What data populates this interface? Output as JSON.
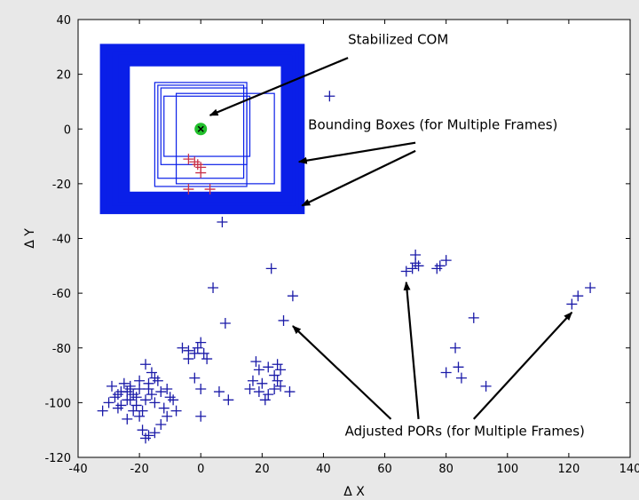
{
  "chart_data": {
    "type": "scatter",
    "title": "",
    "xlabel": "Δ X",
    "ylabel": "Δ Y",
    "xlim": [
      -40,
      140
    ],
    "ylim": [
      -120,
      40
    ],
    "xticks": [
      -40,
      -20,
      0,
      20,
      40,
      60,
      80,
      100,
      120,
      140
    ],
    "yticks": [
      40,
      20,
      0,
      -20,
      -40,
      -60,
      -80,
      -100,
      -120
    ],
    "grid": false,
    "colors": {
      "pors": "#1a1aa8",
      "com": "#22c02c",
      "boxes": "#0a1fe8",
      "frame_pors": "#c8324a",
      "arrows": "#000000"
    },
    "stabilized_com": {
      "x": 0,
      "y": 0
    },
    "bounding_boxes": [
      {
        "x0": -31,
        "x1": 32,
        "y0": -29,
        "y1": 29
      },
      {
        "x0": -29,
        "x1": 30,
        "y0": -28,
        "y1": 27
      },
      {
        "x0": -27,
        "x1": 29,
        "y0": -26,
        "y1": 26
      },
      {
        "x0": -25,
        "x1": 28,
        "y0": -25,
        "y1": 25
      },
      {
        "x0": -15,
        "x1": 15,
        "y0": -21,
        "y1": 17
      },
      {
        "x0": -14,
        "x1": 14,
        "y0": -18,
        "y1": 16
      },
      {
        "x0": -13,
        "x1": 15,
        "y0": -13,
        "y1": 15
      },
      {
        "x0": -8,
        "x1": 24,
        "y0": -20,
        "y1": 13
      },
      {
        "x0": -12,
        "x1": 16,
        "y0": -10,
        "y1": 12
      }
    ],
    "frame_pors": [
      {
        "x": -4,
        "y": -11
      },
      {
        "x": -2,
        "y": -12
      },
      {
        "x": -1,
        "y": -13
      },
      {
        "x": 0,
        "y": -14
      },
      {
        "x": 0,
        "y": -16
      },
      {
        "x": -4,
        "y": -22
      },
      {
        "x": 3,
        "y": -22
      }
    ],
    "points": [
      {
        "x": 42,
        "y": 12
      },
      {
        "x": 7,
        "y": -34
      },
      {
        "x": 23,
        "y": -51
      },
      {
        "x": 4,
        "y": -58
      },
      {
        "x": 30,
        "y": -61
      },
      {
        "x": 8,
        "y": -71
      },
      {
        "x": 27,
        "y": -70
      },
      {
        "x": 70,
        "y": -46
      },
      {
        "x": 70,
        "y": -49
      },
      {
        "x": 71,
        "y": -50
      },
      {
        "x": 69,
        "y": -51
      },
      {
        "x": 67,
        "y": -52
      },
      {
        "x": 77,
        "y": -51
      },
      {
        "x": 78,
        "y": -50
      },
      {
        "x": 80,
        "y": -48
      },
      {
        "x": 127,
        "y": -58
      },
      {
        "x": 123,
        "y": -61
      },
      {
        "x": 121,
        "y": -64
      },
      {
        "x": 89,
        "y": -69
      },
      {
        "x": 83,
        "y": -80
      },
      {
        "x": 84,
        "y": -87
      },
      {
        "x": 80,
        "y": -89
      },
      {
        "x": 85,
        "y": -91
      },
      {
        "x": 93,
        "y": -94
      },
      {
        "x": -6,
        "y": -80
      },
      {
        "x": -4,
        "y": -81
      },
      {
        "x": -2,
        "y": -82
      },
      {
        "x": -1,
        "y": -80
      },
      {
        "x": 0,
        "y": -78
      },
      {
        "x": 1,
        "y": -82
      },
      {
        "x": -4,
        "y": -84
      },
      {
        "x": 2,
        "y": -84
      },
      {
        "x": -2,
        "y": -91
      },
      {
        "x": 0,
        "y": -95
      },
      {
        "x": 6,
        "y": -96
      },
      {
        "x": 9,
        "y": -99
      },
      {
        "x": 0,
        "y": -105
      },
      {
        "x": 18,
        "y": -85
      },
      {
        "x": 19,
        "y": -88
      },
      {
        "x": 22,
        "y": -87
      },
      {
        "x": 25,
        "y": -86
      },
      {
        "x": 26,
        "y": -88
      },
      {
        "x": 24,
        "y": -90
      },
      {
        "x": 17,
        "y": -92
      },
      {
        "x": 20,
        "y": -93
      },
      {
        "x": 25,
        "y": -92
      },
      {
        "x": 16,
        "y": -95
      },
      {
        "x": 19,
        "y": -96
      },
      {
        "x": 22,
        "y": -97
      },
      {
        "x": 24,
        "y": -95
      },
      {
        "x": 26,
        "y": -94
      },
      {
        "x": 29,
        "y": -96
      },
      {
        "x": 21,
        "y": -99
      },
      {
        "x": -32,
        "y": -103
      },
      {
        "x": -30,
        "y": -100
      },
      {
        "x": -29,
        "y": -94
      },
      {
        "x": -28,
        "y": -98
      },
      {
        "x": -27,
        "y": -102
      },
      {
        "x": -26,
        "y": -96
      },
      {
        "x": -25,
        "y": -93
      },
      {
        "x": -24,
        "y": -99
      },
      {
        "x": -23,
        "y": -94
      },
      {
        "x": -22,
        "y": -97
      },
      {
        "x": -21,
        "y": -101
      },
      {
        "x": -20,
        "y": -95
      },
      {
        "x": -19,
        "y": -103
      },
      {
        "x": -18,
        "y": -99
      },
      {
        "x": -17,
        "y": -93
      },
      {
        "x": -16,
        "y": -97
      },
      {
        "x": -15,
        "y": -100
      },
      {
        "x": -14,
        "y": -92
      },
      {
        "x": -13,
        "y": -96
      },
      {
        "x": -12,
        "y": -102
      },
      {
        "x": -11,
        "y": -95
      },
      {
        "x": -10,
        "y": -98
      },
      {
        "x": -18,
        "y": -86
      },
      {
        "x": -16,
        "y": -89
      },
      {
        "x": -15,
        "y": -91
      },
      {
        "x": -20,
        "y": -105
      },
      {
        "x": -22,
        "y": -103
      },
      {
        "x": -24,
        "y": -106
      },
      {
        "x": -19,
        "y": -110
      },
      {
        "x": -17,
        "y": -112
      },
      {
        "x": -15,
        "y": -111
      },
      {
        "x": -18,
        "y": -113
      },
      {
        "x": -11,
        "y": -105
      },
      {
        "x": -9,
        "y": -99
      },
      {
        "x": -8,
        "y": -103
      },
      {
        "x": -13,
        "y": -108
      },
      {
        "x": -26,
        "y": -101
      },
      {
        "x": -24,
        "y": -96
      },
      {
        "x": -23,
        "y": -95
      },
      {
        "x": -21,
        "y": -98
      },
      {
        "x": -27,
        "y": -97
      },
      {
        "x": -23,
        "y": -99
      },
      {
        "x": -20,
        "y": -92
      },
      {
        "x": -17,
        "y": -95
      }
    ],
    "annotations": [
      {
        "text": "Stabilized COM",
        "x": 48,
        "y": 31,
        "arrows": [
          {
            "from": [
              48,
              26
            ],
            "to": [
              3,
              5
            ]
          }
        ]
      },
      {
        "text": "Bounding Boxes (for Multiple Frames)",
        "x": 35,
        "y": 0,
        "arrows": [
          {
            "from": [
              70,
              -5
            ],
            "to": [
              32,
              -12
            ]
          },
          {
            "from": [
              70,
              -8
            ],
            "to": [
              33,
              -28
            ]
          }
        ]
      },
      {
        "text": "Adjusted PORs (for Multiple Frames)",
        "x": 47,
        "y": -112,
        "arrows": [
          {
            "from": [
              62,
              -106
            ],
            "to": [
              30,
              -72
            ]
          },
          {
            "from": [
              71,
              -106
            ],
            "to": [
              67,
              -56
            ]
          },
          {
            "from": [
              89,
              -106
            ],
            "to": [
              121,
              -67
            ]
          }
        ]
      }
    ]
  }
}
